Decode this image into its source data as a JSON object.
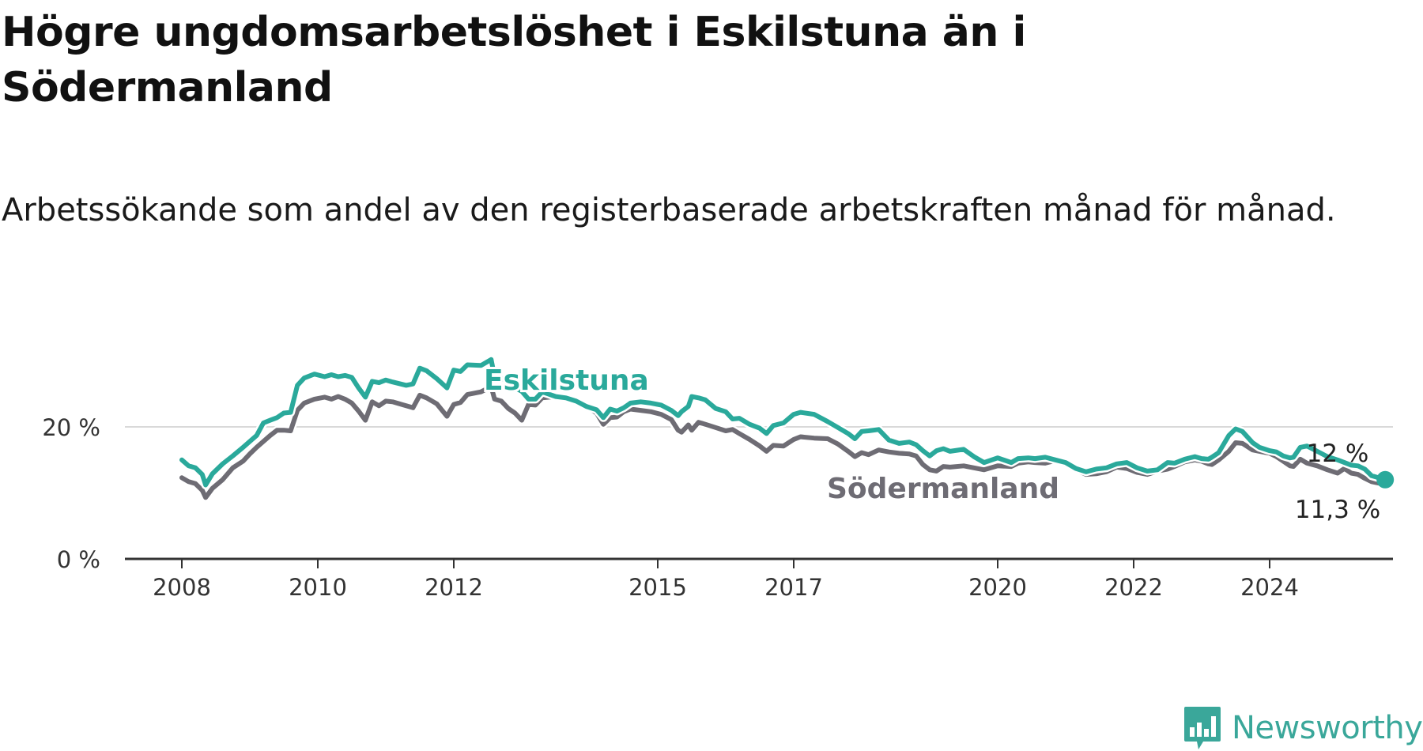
{
  "title": "Högre ungdomsarbetslöshet i Eskilstuna än i Södermanland",
  "subtitle": "Arbetssökande som andel av den registerbaserade arbetskraften månad för månad.",
  "brand": {
    "name": "Newsworthy",
    "icon": "newsworthy-logo-icon",
    "color": "#3aa79a"
  },
  "chart_data": {
    "type": "line",
    "title": "Högre ungdomsarbetslöshet i Eskilstuna än i Södermanland",
    "subtitle": "Arbetssökande som andel av den registerbaserade arbetskraften månad för månad.",
    "xlim": [
      2008,
      2025.8
    ],
    "ylim": [
      0,
      31
    ],
    "y_ticks": [
      {
        "value": 0,
        "label": "0 %"
      },
      {
        "value": 20,
        "label": "20 %"
      }
    ],
    "x_ticks": [
      {
        "value": 2008,
        "label": "2008"
      },
      {
        "value": 2010,
        "label": "2010"
      },
      {
        "value": 2012,
        "label": "2012"
      },
      {
        "value": 2015,
        "label": "2015"
      },
      {
        "value": 2017,
        "label": "2017"
      },
      {
        "value": 2020,
        "label": "2020"
      },
      {
        "value": 2022,
        "label": "2022"
      },
      {
        "value": 2024,
        "label": "2024"
      }
    ],
    "grid": "horizontal",
    "legend": "inline labels",
    "series": [
      {
        "name": "Södermanland",
        "color": "#6e6c74",
        "end_label": "11,3 %",
        "points": [
          [
            2008.0,
            12.3
          ],
          [
            2008.1,
            11.7
          ],
          [
            2008.2,
            11.4
          ],
          [
            2008.3,
            10.4
          ],
          [
            2008.35,
            9.3
          ],
          [
            2008.45,
            10.7
          ],
          [
            2008.6,
            12.0
          ],
          [
            2008.75,
            13.8
          ],
          [
            2008.9,
            14.8
          ],
          [
            2009.0,
            15.9
          ],
          [
            2009.1,
            16.9
          ],
          [
            2009.2,
            17.8
          ],
          [
            2009.3,
            18.7
          ],
          [
            2009.4,
            19.5
          ],
          [
            2009.5,
            19.5
          ],
          [
            2009.6,
            19.4
          ],
          [
            2009.7,
            22.5
          ],
          [
            2009.8,
            23.6
          ],
          [
            2009.95,
            24.2
          ],
          [
            2010.1,
            24.5
          ],
          [
            2010.2,
            24.2
          ],
          [
            2010.3,
            24.6
          ],
          [
            2010.4,
            24.2
          ],
          [
            2010.5,
            23.6
          ],
          [
            2010.6,
            22.4
          ],
          [
            2010.7,
            21.0
          ],
          [
            2010.8,
            23.8
          ],
          [
            2010.9,
            23.2
          ],
          [
            2011.0,
            23.9
          ],
          [
            2011.1,
            23.8
          ],
          [
            2011.3,
            23.2
          ],
          [
            2011.4,
            22.9
          ],
          [
            2011.5,
            24.8
          ],
          [
            2011.6,
            24.4
          ],
          [
            2011.75,
            23.5
          ],
          [
            2011.9,
            21.6
          ],
          [
            2012.0,
            23.4
          ],
          [
            2012.1,
            23.7
          ],
          [
            2012.2,
            24.9
          ],
          [
            2012.4,
            25.3
          ],
          [
            2012.55,
            26.1
          ],
          [
            2012.6,
            24.2
          ],
          [
            2012.7,
            23.9
          ],
          [
            2012.8,
            22.8
          ],
          [
            2012.9,
            22.1
          ],
          [
            2013.0,
            21.0
          ],
          [
            2013.1,
            23.4
          ],
          [
            2013.2,
            23.3
          ],
          [
            2013.3,
            24.4
          ],
          [
            2013.5,
            24.6
          ],
          [
            2013.65,
            24.4
          ],
          [
            2013.8,
            23.8
          ],
          [
            2013.95,
            23.1
          ],
          [
            2014.1,
            22.1
          ],
          [
            2014.2,
            20.4
          ],
          [
            2014.3,
            21.4
          ],
          [
            2014.4,
            21.5
          ],
          [
            2014.5,
            22.3
          ],
          [
            2014.6,
            22.7
          ],
          [
            2014.75,
            22.5
          ],
          [
            2014.9,
            22.3
          ],
          [
            2015.05,
            21.9
          ],
          [
            2015.2,
            21.1
          ],
          [
            2015.3,
            19.5
          ],
          [
            2015.35,
            19.2
          ],
          [
            2015.45,
            20.3
          ],
          [
            2015.5,
            19.5
          ],
          [
            2015.6,
            20.7
          ],
          [
            2015.7,
            20.4
          ],
          [
            2015.85,
            19.9
          ],
          [
            2016.0,
            19.4
          ],
          [
            2016.1,
            19.6
          ],
          [
            2016.2,
            19.0
          ],
          [
            2016.35,
            18.1
          ],
          [
            2016.5,
            17.1
          ],
          [
            2016.6,
            16.3
          ],
          [
            2016.7,
            17.2
          ],
          [
            2016.85,
            17.1
          ],
          [
            2017.0,
            18.1
          ],
          [
            2017.1,
            18.5
          ],
          [
            2017.3,
            18.3
          ],
          [
            2017.5,
            18.2
          ],
          [
            2017.65,
            17.4
          ],
          [
            2017.8,
            16.3
          ],
          [
            2017.9,
            15.5
          ],
          [
            2018.0,
            16.1
          ],
          [
            2018.1,
            15.8
          ],
          [
            2018.25,
            16.5
          ],
          [
            2018.4,
            16.2
          ],
          [
            2018.55,
            16.0
          ],
          [
            2018.7,
            15.9
          ],
          [
            2018.8,
            15.6
          ],
          [
            2018.9,
            14.3
          ],
          [
            2019.0,
            13.5
          ],
          [
            2019.1,
            13.3
          ],
          [
            2019.2,
            14.0
          ],
          [
            2019.3,
            13.9
          ],
          [
            2019.5,
            14.1
          ],
          [
            2019.65,
            13.8
          ],
          [
            2019.8,
            13.5
          ],
          [
            2020.0,
            14.1
          ],
          [
            2020.2,
            14.0
          ],
          [
            2020.3,
            14.5
          ],
          [
            2020.45,
            14.7
          ],
          [
            2020.55,
            14.6
          ],
          [
            2020.7,
            14.5
          ],
          [
            2020.85,
            14.9
          ],
          [
            2021.0,
            14.3
          ],
          [
            2021.15,
            13.5
          ],
          [
            2021.3,
            12.8
          ],
          [
            2021.45,
            12.9
          ],
          [
            2021.6,
            13.2
          ],
          [
            2021.75,
            13.9
          ],
          [
            2021.9,
            13.7
          ],
          [
            2022.05,
            13.1
          ],
          [
            2022.2,
            12.8
          ],
          [
            2022.35,
            13.3
          ],
          [
            2022.5,
            13.6
          ],
          [
            2022.6,
            14.0
          ],
          [
            2022.75,
            14.7
          ],
          [
            2022.9,
            15.0
          ],
          [
            2023.0,
            14.8
          ],
          [
            2023.1,
            14.4
          ],
          [
            2023.15,
            14.3
          ],
          [
            2023.25,
            15.0
          ],
          [
            2023.4,
            16.3
          ],
          [
            2023.5,
            17.6
          ],
          [
            2023.6,
            17.5
          ],
          [
            2023.75,
            16.5
          ],
          [
            2023.85,
            16.3
          ],
          [
            2024.0,
            16.0
          ],
          [
            2024.1,
            15.5
          ],
          [
            2024.2,
            14.8
          ],
          [
            2024.3,
            14.1
          ],
          [
            2024.35,
            14.0
          ],
          [
            2024.45,
            15.1
          ],
          [
            2024.55,
            14.5
          ],
          [
            2024.7,
            14.1
          ],
          [
            2024.85,
            13.5
          ],
          [
            2025.0,
            13.0
          ],
          [
            2025.1,
            13.7
          ],
          [
            2025.2,
            13.0
          ],
          [
            2025.3,
            12.8
          ],
          [
            2025.4,
            12.2
          ],
          [
            2025.5,
            11.7
          ],
          [
            2025.6,
            11.5
          ],
          [
            2025.7,
            11.3
          ]
        ]
      },
      {
        "name": "Eskilstuna",
        "color": "#2aa99b",
        "end_label": "12 %",
        "points": [
          [
            2008.0,
            15.0
          ],
          [
            2008.1,
            14.1
          ],
          [
            2008.2,
            13.8
          ],
          [
            2008.3,
            12.8
          ],
          [
            2008.35,
            11.2
          ],
          [
            2008.45,
            12.9
          ],
          [
            2008.6,
            14.4
          ],
          [
            2008.75,
            15.6
          ],
          [
            2008.9,
            16.9
          ],
          [
            2009.0,
            17.8
          ],
          [
            2009.1,
            18.7
          ],
          [
            2009.2,
            20.6
          ],
          [
            2009.3,
            21.0
          ],
          [
            2009.4,
            21.4
          ],
          [
            2009.5,
            22.1
          ],
          [
            2009.6,
            22.2
          ],
          [
            2009.7,
            26.3
          ],
          [
            2009.8,
            27.4
          ],
          [
            2009.95,
            28.0
          ],
          [
            2010.1,
            27.6
          ],
          [
            2010.2,
            27.9
          ],
          [
            2010.3,
            27.6
          ],
          [
            2010.4,
            27.8
          ],
          [
            2010.5,
            27.5
          ],
          [
            2010.6,
            25.9
          ],
          [
            2010.7,
            24.5
          ],
          [
            2010.8,
            26.9
          ],
          [
            2010.9,
            26.7
          ],
          [
            2011.0,
            27.1
          ],
          [
            2011.1,
            26.8
          ],
          [
            2011.3,
            26.3
          ],
          [
            2011.4,
            26.5
          ],
          [
            2011.5,
            28.9
          ],
          [
            2011.6,
            28.5
          ],
          [
            2011.75,
            27.3
          ],
          [
            2011.9,
            25.9
          ],
          [
            2012.0,
            28.6
          ],
          [
            2012.1,
            28.4
          ],
          [
            2012.2,
            29.4
          ],
          [
            2012.4,
            29.3
          ],
          [
            2012.55,
            30.2
          ],
          [
            2012.6,
            27.6
          ],
          [
            2012.7,
            27.4
          ],
          [
            2012.8,
            26.6
          ],
          [
            2012.9,
            25.9
          ],
          [
            2013.0,
            25.4
          ],
          [
            2013.1,
            24.2
          ],
          [
            2013.2,
            24.2
          ],
          [
            2013.3,
            25.3
          ],
          [
            2013.5,
            24.6
          ],
          [
            2013.65,
            24.4
          ],
          [
            2013.8,
            23.9
          ],
          [
            2013.95,
            23.1
          ],
          [
            2014.1,
            22.6
          ],
          [
            2014.2,
            21.4
          ],
          [
            2014.3,
            22.7
          ],
          [
            2014.4,
            22.4
          ],
          [
            2014.5,
            22.9
          ],
          [
            2014.6,
            23.6
          ],
          [
            2014.75,
            23.8
          ],
          [
            2014.9,
            23.6
          ],
          [
            2015.05,
            23.3
          ],
          [
            2015.2,
            22.5
          ],
          [
            2015.3,
            21.7
          ],
          [
            2015.35,
            22.3
          ],
          [
            2015.45,
            23.1
          ],
          [
            2015.5,
            24.6
          ],
          [
            2015.6,
            24.4
          ],
          [
            2015.7,
            24.1
          ],
          [
            2015.85,
            22.8
          ],
          [
            2016.0,
            22.3
          ],
          [
            2016.1,
            21.2
          ],
          [
            2016.2,
            21.3
          ],
          [
            2016.35,
            20.4
          ],
          [
            2016.5,
            19.8
          ],
          [
            2016.6,
            19.0
          ],
          [
            2016.7,
            20.2
          ],
          [
            2016.85,
            20.6
          ],
          [
            2017.0,
            21.9
          ],
          [
            2017.1,
            22.2
          ],
          [
            2017.3,
            21.9
          ],
          [
            2017.5,
            20.8
          ],
          [
            2017.65,
            19.9
          ],
          [
            2017.8,
            19.0
          ],
          [
            2017.9,
            18.2
          ],
          [
            2018.0,
            19.3
          ],
          [
            2018.1,
            19.4
          ],
          [
            2018.25,
            19.6
          ],
          [
            2018.4,
            18.0
          ],
          [
            2018.55,
            17.5
          ],
          [
            2018.7,
            17.7
          ],
          [
            2018.8,
            17.3
          ],
          [
            2018.9,
            16.4
          ],
          [
            2019.0,
            15.6
          ],
          [
            2019.1,
            16.4
          ],
          [
            2019.2,
            16.7
          ],
          [
            2019.3,
            16.3
          ],
          [
            2019.5,
            16.6
          ],
          [
            2019.65,
            15.5
          ],
          [
            2019.8,
            14.6
          ],
          [
            2020.0,
            15.3
          ],
          [
            2020.2,
            14.6
          ],
          [
            2020.3,
            15.2
          ],
          [
            2020.45,
            15.3
          ],
          [
            2020.55,
            15.2
          ],
          [
            2020.7,
            15.4
          ],
          [
            2020.85,
            15.0
          ],
          [
            2021.0,
            14.6
          ],
          [
            2021.15,
            13.7
          ],
          [
            2021.3,
            13.2
          ],
          [
            2021.45,
            13.6
          ],
          [
            2021.6,
            13.8
          ],
          [
            2021.75,
            14.4
          ],
          [
            2021.9,
            14.6
          ],
          [
            2022.05,
            13.8
          ],
          [
            2022.2,
            13.3
          ],
          [
            2022.35,
            13.5
          ],
          [
            2022.5,
            14.6
          ],
          [
            2022.6,
            14.5
          ],
          [
            2022.75,
            15.1
          ],
          [
            2022.9,
            15.5
          ],
          [
            2023.0,
            15.2
          ],
          [
            2023.1,
            15.1
          ],
          [
            2023.15,
            15.4
          ],
          [
            2023.25,
            16.1
          ],
          [
            2023.4,
            18.7
          ],
          [
            2023.5,
            19.7
          ],
          [
            2023.6,
            19.3
          ],
          [
            2023.75,
            17.6
          ],
          [
            2023.85,
            16.9
          ],
          [
            2024.0,
            16.4
          ],
          [
            2024.1,
            16.2
          ],
          [
            2024.2,
            15.6
          ],
          [
            2024.3,
            15.3
          ],
          [
            2024.35,
            15.4
          ],
          [
            2024.45,
            16.9
          ],
          [
            2024.55,
            17.1
          ],
          [
            2024.7,
            16.3
          ],
          [
            2024.85,
            15.5
          ],
          [
            2025.0,
            15.0
          ],
          [
            2025.1,
            14.6
          ],
          [
            2025.2,
            14.2
          ],
          [
            2025.3,
            14.1
          ],
          [
            2025.4,
            13.6
          ],
          [
            2025.5,
            12.6
          ],
          [
            2025.6,
            12.3
          ],
          [
            2025.7,
            12.0
          ]
        ]
      }
    ]
  }
}
